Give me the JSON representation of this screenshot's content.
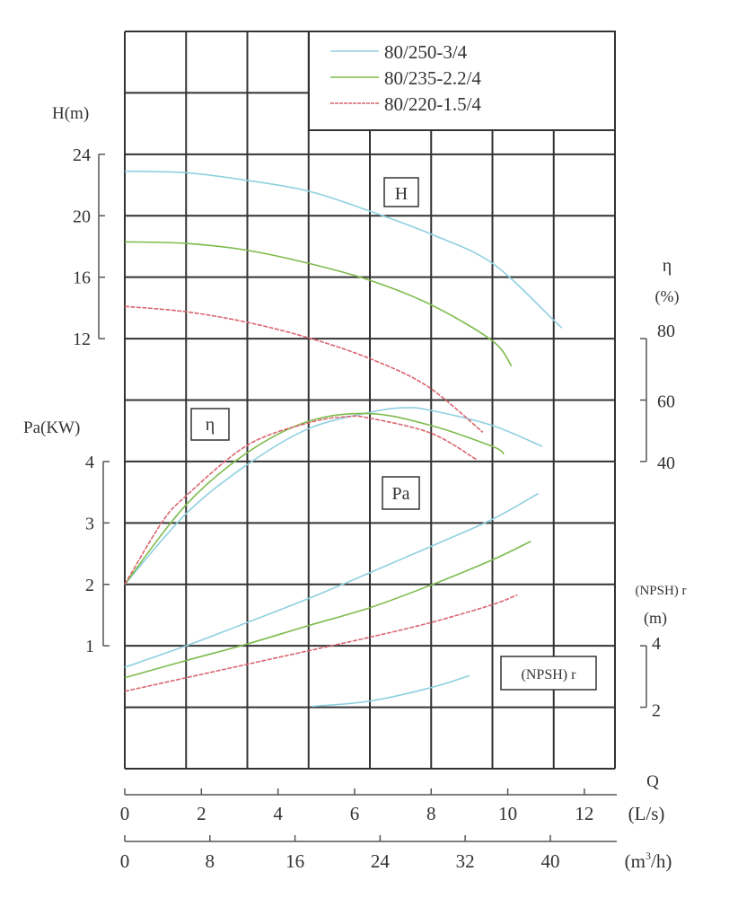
{
  "chart_data": {
    "type": "line",
    "grid": true,
    "legend_placement": "top-right",
    "x_axes": [
      {
        "label": "Q",
        "unit": "(L/s)",
        "ticks": [
          "0",
          "2",
          "4",
          "6",
          "8",
          "10",
          "12"
        ],
        "tick_values": [
          0,
          2,
          4,
          6,
          8,
          10,
          12
        ]
      },
      {
        "unit": "(m³/h)",
        "unit_base": "(m",
        "unit_sup": "3",
        "unit_tail": "/h)",
        "ticks": [
          "0",
          "8",
          "16",
          "24",
          "32",
          "40"
        ],
        "tick_values": [
          0,
          8,
          16,
          24,
          32,
          40
        ]
      }
    ],
    "y_axes": {
      "H": {
        "label": "H(m)",
        "ticks": [
          "24",
          "20",
          "16",
          "12"
        ],
        "tick_values": [
          24,
          20,
          16,
          12
        ]
      },
      "Pa": {
        "label": "Pa(KW)",
        "ticks": [
          "4",
          "3",
          "2",
          "1"
        ],
        "tick_values": [
          4,
          3,
          2,
          1
        ]
      },
      "eta": {
        "label": "η",
        "unit": "(%)",
        "ticks": [
          "80",
          "60",
          "40"
        ],
        "tick_values": [
          80,
          60,
          40
        ]
      },
      "npsh": {
        "label": "(NPSH) r",
        "unit": "(m)",
        "ticks": [
          "4",
          "2"
        ],
        "tick_values": [
          4,
          2
        ]
      }
    },
    "curve_labels": {
      "H": "H",
      "eta": "η",
      "Pa": "Pa",
      "npsh": "(NPSH) r"
    },
    "series": [
      {
        "name": "80/250-3/4",
        "color": "#8fd0e0",
        "H": [
          [
            0,
            22.9
          ],
          [
            1.6,
            22.8
          ],
          [
            3.2,
            22.3
          ],
          [
            4.8,
            21.6
          ],
          [
            6.4,
            20.3
          ],
          [
            8.0,
            18.8
          ],
          [
            9.6,
            16.9
          ],
          [
            11.2,
            13.2
          ],
          [
            11.4,
            12.7
          ]
        ],
        "eta": [
          [
            0,
            0
          ],
          [
            1.6,
            23
          ],
          [
            3.2,
            39
          ],
          [
            4.8,
            50.7
          ],
          [
            6.4,
            56
          ],
          [
            7.3,
            57.5
          ],
          [
            8.0,
            56.6
          ],
          [
            9.6,
            51.7
          ],
          [
            10.9,
            44.9
          ]
        ],
        "Pa": [
          [
            0,
            0.65
          ],
          [
            1.6,
            1.0
          ],
          [
            3.2,
            1.38
          ],
          [
            4.8,
            1.77
          ],
          [
            6.4,
            2.19
          ],
          [
            8.0,
            2.62
          ],
          [
            9.6,
            3.06
          ],
          [
            10.8,
            3.48
          ]
        ]
      },
      {
        "name": "80/235-2.2/4",
        "color": "#7dbb4c",
        "H": [
          [
            0,
            18.3
          ],
          [
            1.6,
            18.2
          ],
          [
            3.2,
            17.75
          ],
          [
            4.8,
            16.9
          ],
          [
            6.4,
            15.8
          ],
          [
            8.0,
            14.2
          ],
          [
            9.6,
            11.85
          ],
          [
            10.1,
            10.2
          ]
        ],
        "eta": [
          [
            0,
            0
          ],
          [
            1.6,
            25.9
          ],
          [
            3.2,
            42.9
          ],
          [
            4.8,
            53.1
          ],
          [
            6.4,
            55.6
          ],
          [
            8.0,
            51.7
          ],
          [
            9.6,
            44.9
          ],
          [
            9.9,
            42.4
          ]
        ],
        "Pa": [
          [
            0,
            0.48
          ],
          [
            1.6,
            0.76
          ],
          [
            3.2,
            1.03
          ],
          [
            4.8,
            1.33
          ],
          [
            6.4,
            1.62
          ],
          [
            8.0,
            1.99
          ],
          [
            9.6,
            2.4
          ],
          [
            10.6,
            2.7
          ]
        ]
      },
      {
        "name": "80/220-1.5/4",
        "color": "#d9656e",
        "H": [
          [
            0,
            14.1
          ],
          [
            1.6,
            13.75
          ],
          [
            3.2,
            13.06
          ],
          [
            4.8,
            12.05
          ],
          [
            6.4,
            10.7
          ],
          [
            7.9,
            8.9
          ],
          [
            9.35,
            5.9
          ]
        ],
        "eta": [
          [
            0,
            0
          ],
          [
            0.96,
            20
          ],
          [
            1.6,
            28.8
          ],
          [
            3.2,
            45.3
          ],
          [
            4.8,
            52.6
          ],
          [
            5.8,
            54.6
          ],
          [
            6.4,
            54.1
          ],
          [
            8.0,
            49.2
          ],
          [
            9.2,
            40.5
          ]
        ],
        "Pa": [
          [
            0,
            0.26
          ],
          [
            1.6,
            0.48
          ],
          [
            3.2,
            0.7
          ],
          [
            4.8,
            0.92
          ],
          [
            6.4,
            1.14
          ],
          [
            8.0,
            1.38
          ],
          [
            9.6,
            1.67
          ],
          [
            10.25,
            1.83
          ]
        ]
      }
    ],
    "npsh_curve": {
      "color": "#8fd0e0",
      "points": [
        [
          4.9,
          2.03
        ],
        [
          6.4,
          2.2
        ],
        [
          8.0,
          2.64
        ],
        [
          9.0,
          3.03
        ]
      ]
    }
  }
}
